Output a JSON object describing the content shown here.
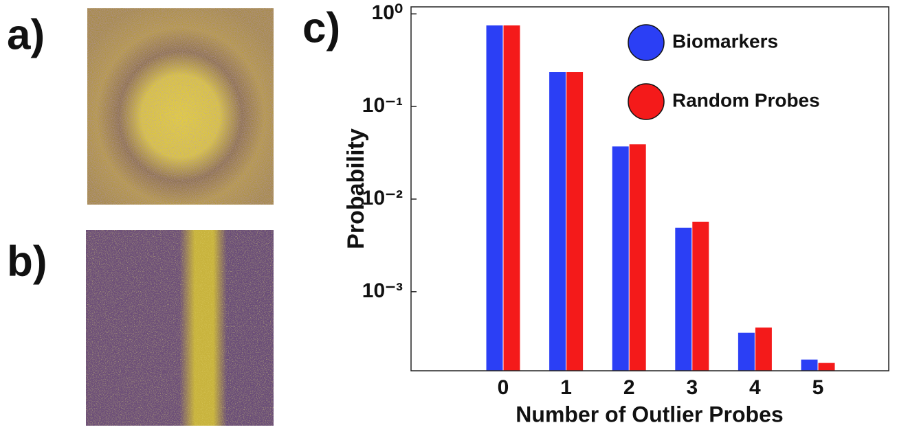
{
  "panel_labels": [
    "a)",
    "b)"
  ],
  "chart_data": {
    "type": "bar",
    "title": "c)",
    "x_label": "Number of Outlier Probes",
    "y_label": "Probability",
    "categories": [
      "0",
      "1",
      "2",
      "3",
      "4",
      "5"
    ],
    "series": [
      {
        "name": "Biomarkers",
        "color": "#2b3ff5",
        "values": [
          0.75,
          0.235,
          0.037,
          0.0049,
          0.00036,
          0.000185
        ]
      },
      {
        "name": "Random Probes",
        "color": "#f41a1a",
        "values": [
          0.75,
          0.235,
          0.039,
          0.0057,
          0.00041,
          0.00017
        ]
      }
    ],
    "log_scale": true,
    "ylim": [
      0.00014,
      1.19
    ],
    "yticks": [
      {
        "value": 1,
        "label": "10⁰"
      },
      {
        "value": 0.1,
        "label": "10⁻¹"
      },
      {
        "value": 0.01,
        "label": "10⁻²"
      },
      {
        "value": 0.001,
        "label": "10⁻³"
      }
    ],
    "legend": "upper right"
  }
}
